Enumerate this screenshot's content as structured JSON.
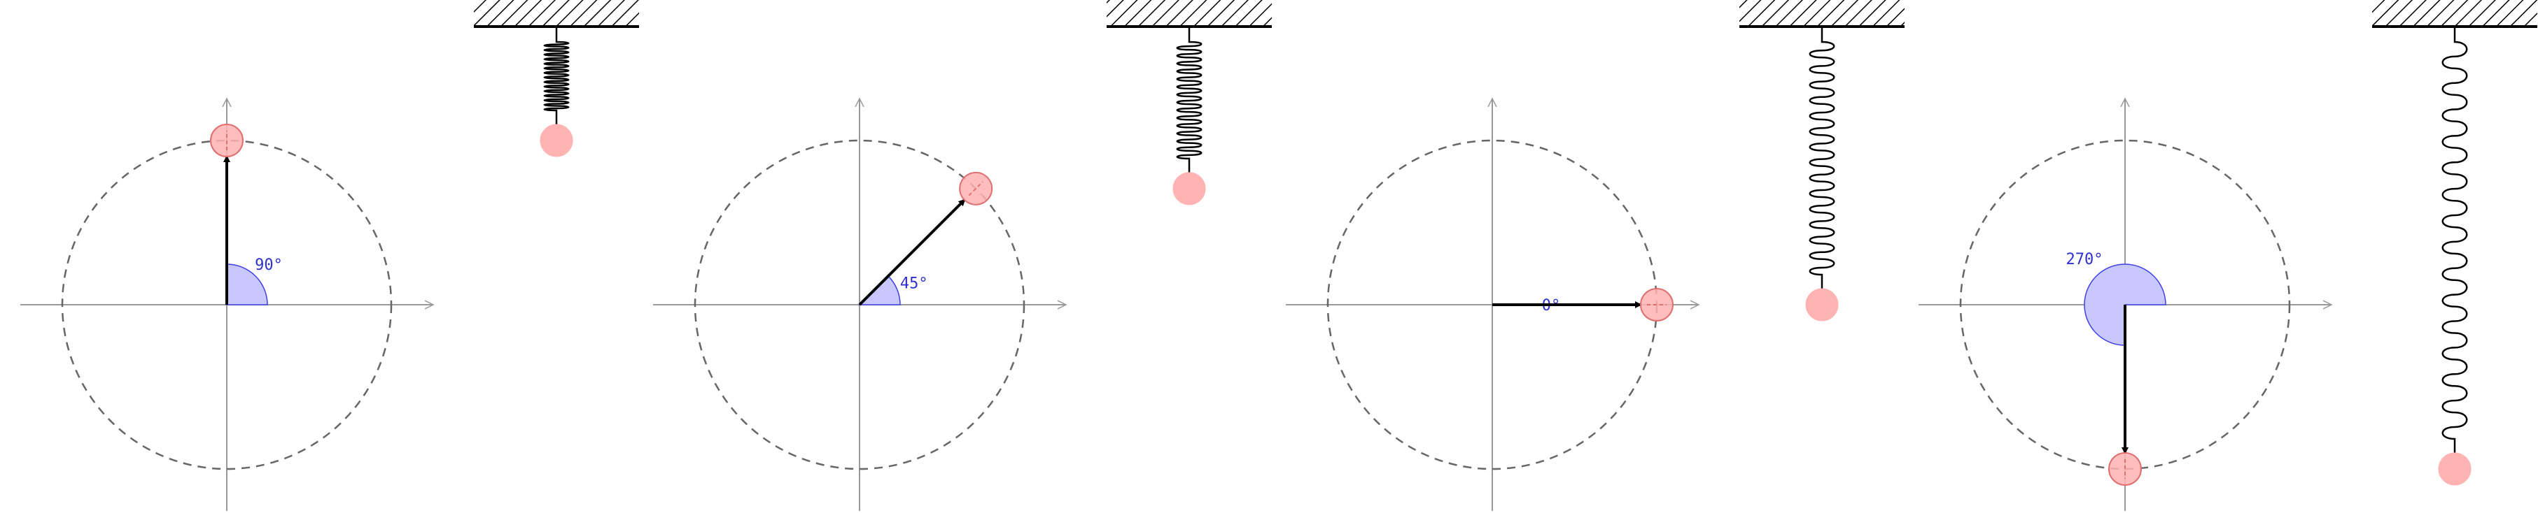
{
  "panels": [
    {
      "angle_deg": 90,
      "angle_label": "90°"
    },
    {
      "angle_deg": 45,
      "angle_label": "45°"
    },
    {
      "angle_deg": 0,
      "angle_label": "0°"
    },
    {
      "angle_deg": 270,
      "angle_label": "270°"
    }
  ],
  "colors": {
    "background": "#ffffff",
    "axis": "#999999",
    "circle_dashed": "#666666",
    "vector": "#000000",
    "angle_fill": "#c8c8ff",
    "angle_stroke": "#4040e0",
    "angle_text": "#3030cc",
    "mass_fill": "#ffb3b3",
    "mass_stroke": "#e07070",
    "spring": "#000000"
  }
}
